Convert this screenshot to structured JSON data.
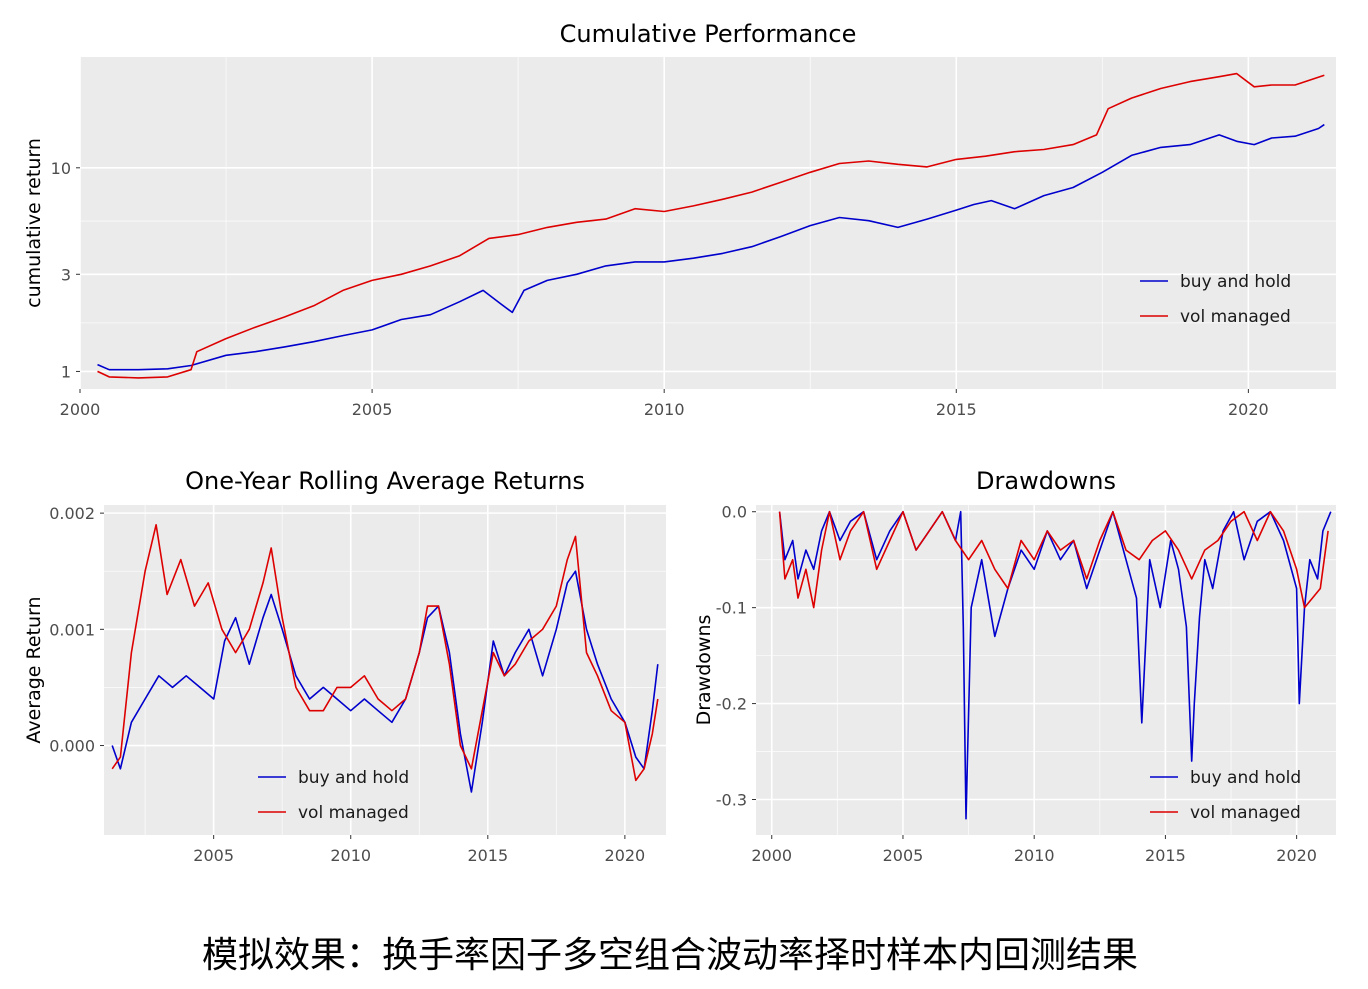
{
  "caption": "模拟效果：换手率因子多空组合波动率择时样本内回测结果",
  "colors": {
    "buy_and_hold": "#0000CC",
    "vol_managed": "#DD0000",
    "panel_bg": "#EBEBEB",
    "grid": "#FFFFFF"
  },
  "chart_data": [
    {
      "type": "line",
      "title": "Cumulative Performance",
      "xlabel": "",
      "ylabel": "cumulative return",
      "xlim": [
        2000,
        2021.5
      ],
      "ylim": [
        0.82,
        35
      ],
      "y_scale": "log",
      "x_ticks": [
        2000,
        2005,
        2010,
        2015,
        2020
      ],
      "x_tick_labels": [
        "2000",
        "2005",
        "2010",
        "2015",
        "2020"
      ],
      "y_ticks": [
        1,
        3,
        10
      ],
      "y_tick_labels": [
        "1",
        "3",
        "10"
      ],
      "legend": "bottom-right",
      "legend_labels": [
        "buy and hold",
        "vol managed"
      ],
      "series": [
        {
          "name": "buy and hold",
          "color": "#0000CC",
          "x": [
            2000.3,
            2000.5,
            2001.0,
            2001.5,
            2001.9,
            2002.5,
            2003.0,
            2003.5,
            2004.0,
            2004.5,
            2005.0,
            2005.5,
            2006.0,
            2006.5,
            2006.9,
            2007.2,
            2007.4,
            2007.6,
            2008.0,
            2008.5,
            2009.0,
            2009.5,
            2010.0,
            2010.5,
            2011.0,
            2011.5,
            2012.0,
            2012.5,
            2013.0,
            2013.5,
            2014.0,
            2014.5,
            2015.0,
            2015.3,
            2015.6,
            2016.0,
            2016.5,
            2017.0,
            2017.5,
            2018.0,
            2018.5,
            2019.0,
            2019.5,
            2019.8,
            2020.1,
            2020.4,
            2020.8,
            2021.2,
            2021.3
          ],
          "y": [
            1.08,
            1.02,
            1.02,
            1.03,
            1.07,
            1.2,
            1.25,
            1.32,
            1.4,
            1.5,
            1.6,
            1.8,
            1.9,
            2.2,
            2.5,
            2.15,
            1.95,
            2.5,
            2.8,
            3.0,
            3.3,
            3.45,
            3.45,
            3.6,
            3.8,
            4.1,
            4.6,
            5.2,
            5.7,
            5.5,
            5.1,
            5.6,
            6.2,
            6.6,
            6.9,
            6.3,
            7.3,
            8.0,
            9.5,
            11.5,
            12.6,
            13.0,
            14.5,
            13.5,
            13.0,
            14.0,
            14.3,
            15.6,
            16.3
          ]
        },
        {
          "name": "vol managed",
          "color": "#DD0000",
          "x": [
            2000.3,
            2000.5,
            2001.0,
            2001.5,
            2001.9,
            2002.0,
            2002.5,
            2003.0,
            2003.5,
            2004.0,
            2004.5,
            2005.0,
            2005.5,
            2006.0,
            2006.5,
            2007.0,
            2007.5,
            2008.0,
            2008.5,
            2009.0,
            2009.5,
            2010.0,
            2010.5,
            2011.0,
            2011.5,
            2012.0,
            2012.5,
            2013.0,
            2013.5,
            2014.0,
            2014.5,
            2015.0,
            2015.5,
            2016.0,
            2016.5,
            2017.0,
            2017.4,
            2017.6,
            2018.0,
            2018.5,
            2019.0,
            2019.5,
            2019.8,
            2020.1,
            2020.4,
            2020.8,
            2021.3
          ],
          "y": [
            1.0,
            0.94,
            0.93,
            0.94,
            1.02,
            1.25,
            1.45,
            1.65,
            1.85,
            2.1,
            2.5,
            2.8,
            3.0,
            3.3,
            3.7,
            4.5,
            4.7,
            5.1,
            5.4,
            5.6,
            6.3,
            6.1,
            6.5,
            7.0,
            7.6,
            8.5,
            9.5,
            10.5,
            10.8,
            10.4,
            10.1,
            11.0,
            11.4,
            12.0,
            12.3,
            13.0,
            14.5,
            19.5,
            22.0,
            24.5,
            26.5,
            28.0,
            29.0,
            25.0,
            25.5,
            25.5,
            28.5
          ]
        }
      ]
    },
    {
      "type": "line",
      "title": "One-Year Rolling Average Returns",
      "xlabel": "",
      "ylabel": "Average Return",
      "xlim": [
        2001.0,
        2021.5
      ],
      "ylim": [
        -0.00077,
        0.00207
      ],
      "x_ticks": [
        2005,
        2010,
        2015,
        2020
      ],
      "x_tick_labels": [
        "2005",
        "2010",
        "2015",
        "2020"
      ],
      "y_ticks": [
        0.0,
        0.001,
        0.002
      ],
      "y_tick_labels": [
        "0.000",
        "0.001",
        "0.002"
      ],
      "legend": "bottom-center",
      "legend_labels": [
        "buy and hold",
        "vol managed"
      ],
      "series": [
        {
          "name": "buy and hold",
          "color": "#0000CC",
          "x": [
            2001.3,
            2001.6,
            2002.0,
            2002.5,
            2003.0,
            2003.5,
            2004.0,
            2004.5,
            2005.0,
            2005.4,
            2005.8,
            2006.3,
            2006.8,
            2007.1,
            2007.5,
            2008.0,
            2008.5,
            2009.0,
            2009.5,
            2010.0,
            2010.5,
            2011.0,
            2011.5,
            2012.0,
            2012.5,
            2012.8,
            2013.2,
            2013.6,
            2014.0,
            2014.4,
            2014.8,
            2015.2,
            2015.6,
            2016.0,
            2016.5,
            2017.0,
            2017.5,
            2017.9,
            2018.2,
            2018.6,
            2019.0,
            2019.5,
            2020.0,
            2020.4,
            2020.7,
            2021.0,
            2021.2
          ],
          "y": [
            0.0,
            -0.0002,
            0.0002,
            0.0004,
            0.0006,
            0.0005,
            0.0006,
            0.0005,
            0.0004,
            0.0009,
            0.0011,
            0.0007,
            0.0011,
            0.0013,
            0.001,
            0.0006,
            0.0004,
            0.0005,
            0.0004,
            0.0003,
            0.0004,
            0.0003,
            0.0002,
            0.0004,
            0.0008,
            0.0011,
            0.0012,
            0.0008,
            0.0001,
            -0.0004,
            0.0002,
            0.0009,
            0.0006,
            0.0008,
            0.001,
            0.0006,
            0.001,
            0.0014,
            0.0015,
            0.001,
            0.0007,
            0.0004,
            0.0002,
            -0.0001,
            -0.0002,
            0.0003,
            0.0007
          ]
        },
        {
          "name": "vol managed",
          "color": "#DD0000",
          "x": [
            2001.3,
            2001.6,
            2002.0,
            2002.5,
            2002.9,
            2003.3,
            2003.8,
            2004.3,
            2004.8,
            2005.3,
            2005.8,
            2006.3,
            2006.8,
            2007.1,
            2007.5,
            2008.0,
            2008.5,
            2009.0,
            2009.5,
            2010.0,
            2010.5,
            2011.0,
            2011.5,
            2012.0,
            2012.5,
            2012.8,
            2013.2,
            2013.6,
            2014.0,
            2014.4,
            2014.8,
            2015.2,
            2015.6,
            2016.0,
            2016.5,
            2017.0,
            2017.5,
            2017.9,
            2018.2,
            2018.6,
            2019.0,
            2019.5,
            2020.0,
            2020.4,
            2020.7,
            2021.0,
            2021.2
          ],
          "y": [
            -0.0002,
            -0.0001,
            0.0008,
            0.0015,
            0.0019,
            0.0013,
            0.0016,
            0.0012,
            0.0014,
            0.001,
            0.0008,
            0.001,
            0.0014,
            0.0017,
            0.0011,
            0.0005,
            0.0003,
            0.0003,
            0.0005,
            0.0005,
            0.0006,
            0.0004,
            0.0003,
            0.0004,
            0.0008,
            0.0012,
            0.0012,
            0.0007,
            0.0,
            -0.0002,
            0.0003,
            0.0008,
            0.0006,
            0.0007,
            0.0009,
            0.001,
            0.0012,
            0.0016,
            0.0018,
            0.0008,
            0.0006,
            0.0003,
            0.0002,
            -0.0003,
            -0.0002,
            0.0001,
            0.0004
          ]
        }
      ]
    },
    {
      "type": "line",
      "title": "Drawdowns",
      "xlabel": "",
      "ylabel": "Drawdowns",
      "xlim": [
        1999.4,
        2021.5
      ],
      "ylim": [
        -0.337,
        0.007
      ],
      "x_ticks": [
        2000,
        2005,
        2010,
        2015,
        2020
      ],
      "x_tick_labels": [
        "2000",
        "2005",
        "2010",
        "2015",
        "2020"
      ],
      "y_ticks": [
        0.0,
        -0.1,
        -0.2,
        -0.3
      ],
      "y_tick_labels": [
        "0.0",
        "-0.1",
        "-0.2",
        "-0.3"
      ],
      "legend": "bottom-right",
      "legend_labels": [
        "buy and hold",
        "vol managed"
      ],
      "series": [
        {
          "name": "buy and hold",
          "color": "#0000CC",
          "x": [
            2000.3,
            2000.5,
            2000.8,
            2001.0,
            2001.3,
            2001.6,
            2001.9,
            2002.2,
            2002.6,
            2003.0,
            2003.5,
            2004.0,
            2004.5,
            2005.0,
            2005.5,
            2006.0,
            2006.5,
            2007.0,
            2007.2,
            2007.3,
            2007.4,
            2007.6,
            2008.0,
            2008.5,
            2009.0,
            2009.5,
            2010.0,
            2010.5,
            2011.0,
            2011.5,
            2012.0,
            2012.5,
            2013.0,
            2013.5,
            2013.9,
            2014.1,
            2014.4,
            2014.8,
            2015.2,
            2015.5,
            2015.8,
            2016.0,
            2016.1,
            2016.3,
            2016.5,
            2016.8,
            2017.2,
            2017.6,
            2018.0,
            2018.5,
            2019.0,
            2019.5,
            2020.0,
            2020.1,
            2020.3,
            2020.5,
            2020.8,
            2021.0,
            2021.3
          ],
          "y": [
            0.0,
            -0.05,
            -0.03,
            -0.07,
            -0.04,
            -0.06,
            -0.02,
            0.0,
            -0.03,
            -0.01,
            0.0,
            -0.05,
            -0.02,
            0.0,
            -0.04,
            -0.02,
            0.0,
            -0.03,
            0.0,
            -0.12,
            -0.32,
            -0.1,
            -0.05,
            -0.13,
            -0.08,
            -0.04,
            -0.06,
            -0.02,
            -0.05,
            -0.03,
            -0.08,
            -0.04,
            0.0,
            -0.05,
            -0.09,
            -0.22,
            -0.05,
            -0.1,
            -0.03,
            -0.06,
            -0.12,
            -0.26,
            -0.2,
            -0.11,
            -0.05,
            -0.08,
            -0.02,
            0.0,
            -0.05,
            -0.01,
            0.0,
            -0.03,
            -0.08,
            -0.2,
            -0.1,
            -0.05,
            -0.07,
            -0.02,
            0.0
          ]
        },
        {
          "name": "vol managed",
          "color": "#DD0000",
          "x": [
            2000.3,
            2000.5,
            2000.8,
            2001.0,
            2001.3,
            2001.6,
            2001.9,
            2002.2,
            2002.6,
            2003.0,
            2003.5,
            2004.0,
            2004.5,
            2005.0,
            2005.5,
            2006.0,
            2006.5,
            2007.0,
            2007.5,
            2008.0,
            2008.5,
            2009.0,
            2009.5,
            2010.0,
            2010.5,
            2011.0,
            2011.5,
            2012.0,
            2012.5,
            2013.0,
            2013.5,
            2014.0,
            2014.5,
            2015.0,
            2015.5,
            2016.0,
            2016.5,
            2017.0,
            2017.5,
            2018.0,
            2018.5,
            2019.0,
            2019.5,
            2020.0,
            2020.3,
            2020.6,
            2020.9,
            2021.2
          ],
          "y": [
            0.0,
            -0.07,
            -0.05,
            -0.09,
            -0.06,
            -0.1,
            -0.04,
            0.0,
            -0.05,
            -0.02,
            0.0,
            -0.06,
            -0.03,
            0.0,
            -0.04,
            -0.02,
            0.0,
            -0.03,
            -0.05,
            -0.03,
            -0.06,
            -0.08,
            -0.03,
            -0.05,
            -0.02,
            -0.04,
            -0.03,
            -0.07,
            -0.03,
            0.0,
            -0.04,
            -0.05,
            -0.03,
            -0.02,
            -0.04,
            -0.07,
            -0.04,
            -0.03,
            -0.01,
            0.0,
            -0.03,
            0.0,
            -0.02,
            -0.06,
            -0.1,
            -0.09,
            -0.08,
            -0.02
          ]
        }
      ]
    }
  ]
}
